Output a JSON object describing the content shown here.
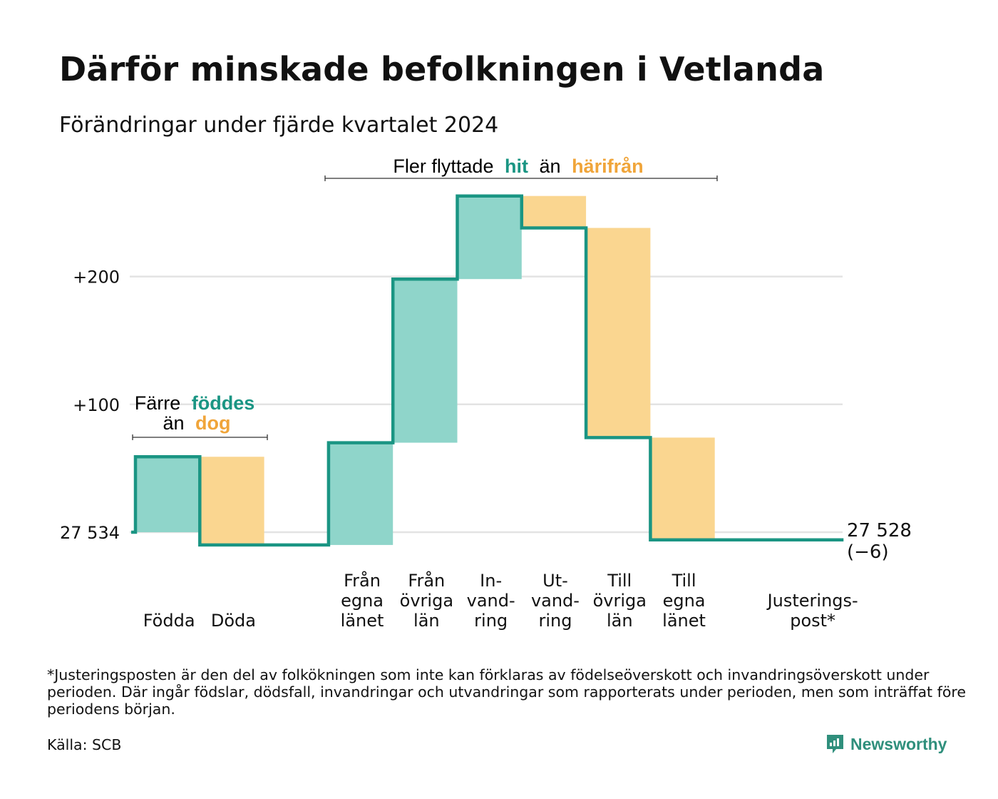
{
  "title": "Därför minskade befolkningen i Vetlanda",
  "subtitle": "Förändringar under fjärde kvartalet 2024",
  "footnote": "*Justeringsposten är den del av folkökningen som inte kan förklaras av födelseöverskott och invandringsöverskott under perioden. Där ingår födslar, dödsfall, invandringar och utvandringar som rapporterats under perioden, men som inträffat före periodens början.",
  "source": "Källa: SCB",
  "brand": "Newsworthy",
  "colors": {
    "increase": "#8fd5ca",
    "decrease": "#fad690",
    "line": "#1a9583",
    "hit": "#1a9583",
    "harifran": "#f0a53a",
    "grid": "#e3e3e3"
  },
  "annotations": {
    "births_deaths": {
      "line1": "Färre",
      "hl1": "föddes",
      "line2": "än",
      "hl2": "dog"
    },
    "migration": {
      "text1": "Fler flyttade",
      "hl1": "hit",
      "text2": "än",
      "hl2": "härifrån"
    }
  },
  "chart_data": {
    "type": "waterfall",
    "baseline": 27534,
    "baseline_label": "27 534",
    "final_label": "27 528",
    "final_change_label": "(−6)",
    "y_ticks": [
      {
        "value": 0,
        "label": "27 534"
      },
      {
        "value": 100,
        "label": "+100"
      },
      {
        "value": 200,
        "label": "+200"
      }
    ],
    "ylim": [
      -12,
      265
    ],
    "grid": true,
    "steps": [
      {
        "lines": [
          "Födda"
        ],
        "value": 59
      },
      {
        "lines": [
          "Döda"
        ],
        "value": -69
      },
      {
        "lines": [
          ""
        ],
        "value": 0
      },
      {
        "lines": [
          "Från",
          "egna",
          "länet"
        ],
        "value": 80
      },
      {
        "lines": [
          "Från",
          "övriga",
          "län"
        ],
        "value": 128
      },
      {
        "lines": [
          "In-",
          "vand-",
          "ring"
        ],
        "value": 65
      },
      {
        "lines": [
          "Ut-",
          "vand-",
          "ring"
        ],
        "value": -25
      },
      {
        "lines": [
          "Till",
          "övriga",
          "län"
        ],
        "value": -164
      },
      {
        "lines": [
          "Till",
          "egna",
          "länet"
        ],
        "value": -80
      },
      {
        "lines": [
          ""
        ],
        "value": 0
      },
      {
        "lines": [
          "Justerings-",
          "post*"
        ],
        "value": 0
      }
    ]
  }
}
